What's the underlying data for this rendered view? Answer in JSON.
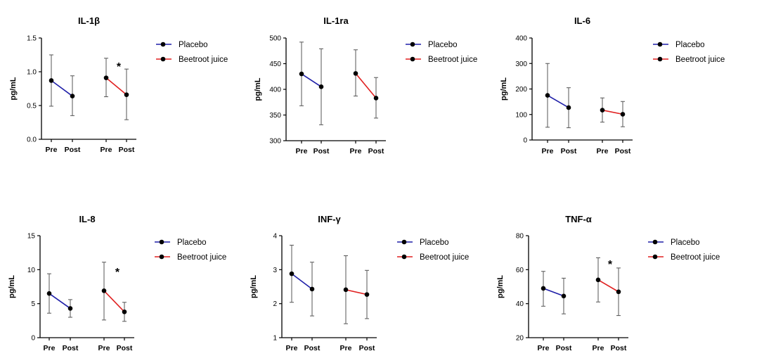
{
  "colors": {
    "placebo": "#1f1fa8",
    "beetroot": "#e02020",
    "point": "#000000",
    "axis": "#000000",
    "errorbar": "#555555"
  },
  "chart_data": [
    {
      "type": "line",
      "title": "IL-1β",
      "ylabel": "pg/mL",
      "ylim": [
        0.0,
        1.5
      ],
      "yticks": [
        "0.0",
        "0.5",
        "1.0",
        "1.5"
      ],
      "categories": [
        "Pre",
        "Post",
        "Pre",
        "Post"
      ],
      "series": [
        {
          "name": "Placebo",
          "color": "placebo",
          "points": [
            {
              "mean": 0.87,
              "low": 0.49,
              "high": 1.25
            },
            {
              "mean": 0.64,
              "low": 0.35,
              "high": 0.94
            }
          ]
        },
        {
          "name": "Beetroot juice",
          "color": "beetroot",
          "points": [
            {
              "mean": 0.91,
              "low": 0.63,
              "high": 1.2
            },
            {
              "mean": 0.66,
              "low": 0.29,
              "high": 1.04
            }
          ]
        }
      ],
      "annotation": "*",
      "legend": [
        "Placebo",
        "Beetroot juice"
      ],
      "legend_placement": "right"
    },
    {
      "type": "line",
      "title": "IL-1ra",
      "ylabel": "pg/mL",
      "ylim": [
        300,
        500
      ],
      "yticks": [
        "300",
        "350",
        "400",
        "450",
        "500"
      ],
      "categories": [
        "Pre",
        "Post",
        "Pre",
        "Post"
      ],
      "series": [
        {
          "name": "Placebo",
          "color": "placebo",
          "points": [
            {
              "mean": 430,
              "low": 368,
              "high": 492
            },
            {
              "mean": 405,
              "low": 331,
              "high": 479
            }
          ]
        },
        {
          "name": "Beetroot juice",
          "color": "beetroot",
          "points": [
            {
              "mean": 431,
              "low": 387,
              "high": 477
            },
            {
              "mean": 383,
              "low": 344,
              "high": 423
            }
          ]
        }
      ],
      "annotation": "",
      "legend": [
        "Placebo",
        "Beetroot juice"
      ],
      "legend_placement": "right"
    },
    {
      "type": "line",
      "title": "IL-6",
      "ylabel": "pg/mL",
      "ylim": [
        0,
        400
      ],
      "yticks": [
        "0",
        "100",
        "200",
        "300",
        "400"
      ],
      "categories": [
        "Pre",
        "Post",
        "Pre",
        "Post"
      ],
      "series": [
        {
          "name": "Placebo",
          "color": "placebo",
          "points": [
            {
              "mean": 175,
              "low": 50,
              "high": 300
            },
            {
              "mean": 127,
              "low": 48,
              "high": 205
            }
          ]
        },
        {
          "name": "Beetroot juice",
          "color": "beetroot",
          "points": [
            {
              "mean": 117,
              "low": 70,
              "high": 165
            },
            {
              "mean": 101,
              "low": 52,
              "high": 151
            }
          ]
        }
      ],
      "annotation": "",
      "legend": [
        "Placebo",
        "Beetroot juice"
      ],
      "legend_placement": "right"
    },
    {
      "type": "line",
      "title": "IL-8",
      "ylabel": "pg/mL",
      "ylim": [
        0,
        15
      ],
      "yticks": [
        "0",
        "5",
        "10",
        "15"
      ],
      "categories": [
        "Pre",
        "Post",
        "Pre",
        "Post"
      ],
      "series": [
        {
          "name": "Placebo",
          "color": "placebo",
          "points": [
            {
              "mean": 6.5,
              "low": 3.6,
              "high": 9.4
            },
            {
              "mean": 4.3,
              "low": 3.0,
              "high": 5.6
            }
          ]
        },
        {
          "name": "Beetroot juice",
          "color": "beetroot",
          "points": [
            {
              "mean": 6.9,
              "low": 2.6,
              "high": 11.1
            },
            {
              "mean": 3.8,
              "low": 2.4,
              "high": 5.2
            }
          ]
        }
      ],
      "annotation": "*",
      "legend": [
        "Placebo",
        "Beetroot juice"
      ],
      "legend_placement": "right"
    },
    {
      "type": "line",
      "title": "INF-γ",
      "ylabel": "pg/mL",
      "ylim": [
        1,
        4
      ],
      "yticks": [
        "1",
        "2",
        "3",
        "4"
      ],
      "categories": [
        "Pre",
        "Post",
        "Pre",
        "Post"
      ],
      "series": [
        {
          "name": "Placebo",
          "color": "placebo",
          "points": [
            {
              "mean": 2.88,
              "low": 2.04,
              "high": 3.72
            },
            {
              "mean": 2.43,
              "low": 1.64,
              "high": 3.22
            }
          ]
        },
        {
          "name": "Beetroot juice",
          "color": "beetroot",
          "points": [
            {
              "mean": 2.41,
              "low": 1.41,
              "high": 3.41
            },
            {
              "mean": 2.27,
              "low": 1.56,
              "high": 2.98
            }
          ]
        }
      ],
      "annotation": "",
      "legend": [
        "Placebo",
        "Beetroot juice"
      ],
      "legend_placement": "right"
    },
    {
      "type": "line",
      "title": "TNF-α",
      "ylabel": "pg/mL",
      "ylim": [
        20,
        80
      ],
      "yticks": [
        "20",
        "40",
        "60",
        "80"
      ],
      "categories": [
        "Pre",
        "Post",
        "Pre",
        "Post"
      ],
      "series": [
        {
          "name": "Placebo",
          "color": "placebo",
          "points": [
            {
              "mean": 49,
              "low": 38.5,
              "high": 59
            },
            {
              "mean": 44.5,
              "low": 34,
              "high": 55
            }
          ]
        },
        {
          "name": "Beetroot juice",
          "color": "beetroot",
          "points": [
            {
              "mean": 54,
              "low": 41,
              "high": 67
            },
            {
              "mean": 47,
              "low": 33,
              "high": 61
            }
          ]
        }
      ],
      "annotation": "*",
      "legend": [
        "Placebo",
        "Beetroot juice"
      ],
      "legend_placement": "right"
    }
  ]
}
